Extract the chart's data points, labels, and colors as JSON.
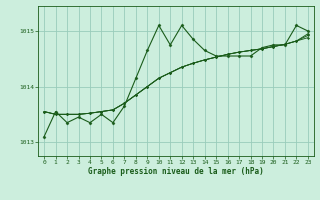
{
  "title": "Graphe pression niveau de la mer (hPa)",
  "background_color": "#cceedd",
  "grid_color": "#99ccbb",
  "line_color": "#1a5c1a",
  "xlim": [
    -0.5,
    23.5
  ],
  "ylim": [
    1012.75,
    1015.45
  ],
  "yticks": [
    1013,
    1014,
    1015
  ],
  "xticks": [
    0,
    1,
    2,
    3,
    4,
    5,
    6,
    7,
    8,
    9,
    10,
    11,
    12,
    13,
    14,
    15,
    16,
    17,
    18,
    19,
    20,
    21,
    22,
    23
  ],
  "series0": [
    1013.1,
    1013.55,
    1013.35,
    1013.45,
    1013.35,
    1013.5,
    1013.35,
    1013.65,
    1014.15,
    1014.65,
    1015.1,
    1014.75,
    1015.1,
    1014.85,
    1014.65,
    1014.55,
    1014.55,
    1014.55,
    1014.55,
    1014.7,
    1014.75,
    1014.75,
    1015.1,
    1015.0
  ],
  "series1": [
    1013.55,
    1013.5,
    1013.5,
    1013.5,
    1013.52,
    1013.55,
    1013.58,
    1013.7,
    1013.85,
    1014.0,
    1014.15,
    1014.25,
    1014.35,
    1014.42,
    1014.48,
    1014.53,
    1014.58,
    1014.62,
    1014.65,
    1014.68,
    1014.72,
    1014.76,
    1014.82,
    1014.88
  ],
  "series2": [
    1013.55,
    1013.5,
    1013.5,
    1013.5,
    1013.52,
    1013.55,
    1013.58,
    1013.7,
    1013.85,
    1014.0,
    1014.15,
    1014.25,
    1014.35,
    1014.42,
    1014.48,
    1014.53,
    1014.58,
    1014.62,
    1014.65,
    1014.68,
    1014.72,
    1014.76,
    1014.82,
    1014.95
  ],
  "series3": [
    1013.55,
    1013.5,
    1013.5,
    1013.5,
    1013.52,
    1013.55,
    1013.58,
    1013.7,
    1013.85,
    1014.0,
    1014.15,
    1014.25,
    1014.35,
    1014.42,
    1014.48,
    1014.53,
    1014.58,
    1014.62,
    1014.65,
    1014.68,
    1014.72,
    1014.76,
    1014.82,
    1014.92
  ],
  "figsize": [
    3.2,
    2.0
  ],
  "dpi": 100
}
